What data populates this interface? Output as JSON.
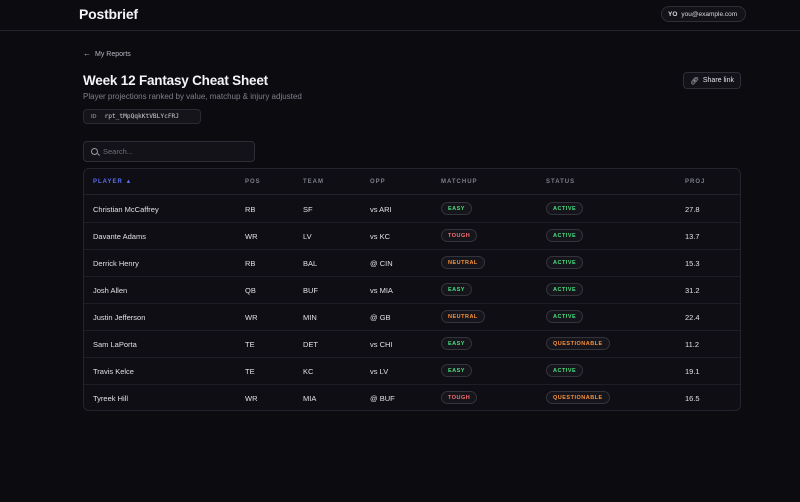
{
  "app": {
    "brand": "Postbrief"
  },
  "user": {
    "initials": "YO",
    "email": "you@example.com"
  },
  "nav": {
    "back_label": "My Reports"
  },
  "report": {
    "title": "Week 12 Fantasy Cheat Sheet",
    "subtitle": "Player projections ranked by value, matchup & injury adjusted",
    "id_label": "ID",
    "id_value": "rpt_tMpQqkKtVBLYcFRJ",
    "share_label": "Share link"
  },
  "search": {
    "placeholder": "Search...",
    "value": ""
  },
  "table": {
    "columns": {
      "player": "PLAYER ▲",
      "pos": "POS",
      "team": "TEAM",
      "opp": "OPP",
      "matchup": "MATCHUP",
      "status": "STATUS",
      "proj": "PROJ"
    },
    "rows": [
      {
        "player": "Christian McCaffrey",
        "pos": "RB",
        "team": "SF",
        "opp": "vs ARI",
        "matchup": "EASY",
        "status": "ACTIVE",
        "proj": "27.8"
      },
      {
        "player": "Davante Adams",
        "pos": "WR",
        "team": "LV",
        "opp": "vs KC",
        "matchup": "TOUGH",
        "status": "ACTIVE",
        "proj": "13.7"
      },
      {
        "player": "Derrick Henry",
        "pos": "RB",
        "team": "BAL",
        "opp": "@ CIN",
        "matchup": "NEUTRAL",
        "status": "ACTIVE",
        "proj": "15.3"
      },
      {
        "player": "Josh Allen",
        "pos": "QB",
        "team": "BUF",
        "opp": "vs MIA",
        "matchup": "EASY",
        "status": "ACTIVE",
        "proj": "31.2"
      },
      {
        "player": "Justin Jefferson",
        "pos": "WR",
        "team": "MIN",
        "opp": "@ GB",
        "matchup": "NEUTRAL",
        "status": "ACTIVE",
        "proj": "22.4"
      },
      {
        "player": "Sam LaPorta",
        "pos": "TE",
        "team": "DET",
        "opp": "vs CHI",
        "matchup": "EASY",
        "status": "QUESTIONABLE",
        "proj": "11.2"
      },
      {
        "player": "Travis Kelce",
        "pos": "TE",
        "team": "KC",
        "opp": "vs LV",
        "matchup": "EASY",
        "status": "ACTIVE",
        "proj": "19.1"
      },
      {
        "player": "Tyreek Hill",
        "pos": "WR",
        "team": "MIA",
        "opp": "@ BUF",
        "matchup": "TOUGH",
        "status": "QUESTIONABLE",
        "proj": "16.5"
      }
    ]
  },
  "colors": {
    "easy": "#4ade80",
    "tough": "#f87171",
    "neutral": "#fb923c",
    "active": "#4ade80",
    "questionable": "#fb923c",
    "accent": "#5b6cf0"
  }
}
